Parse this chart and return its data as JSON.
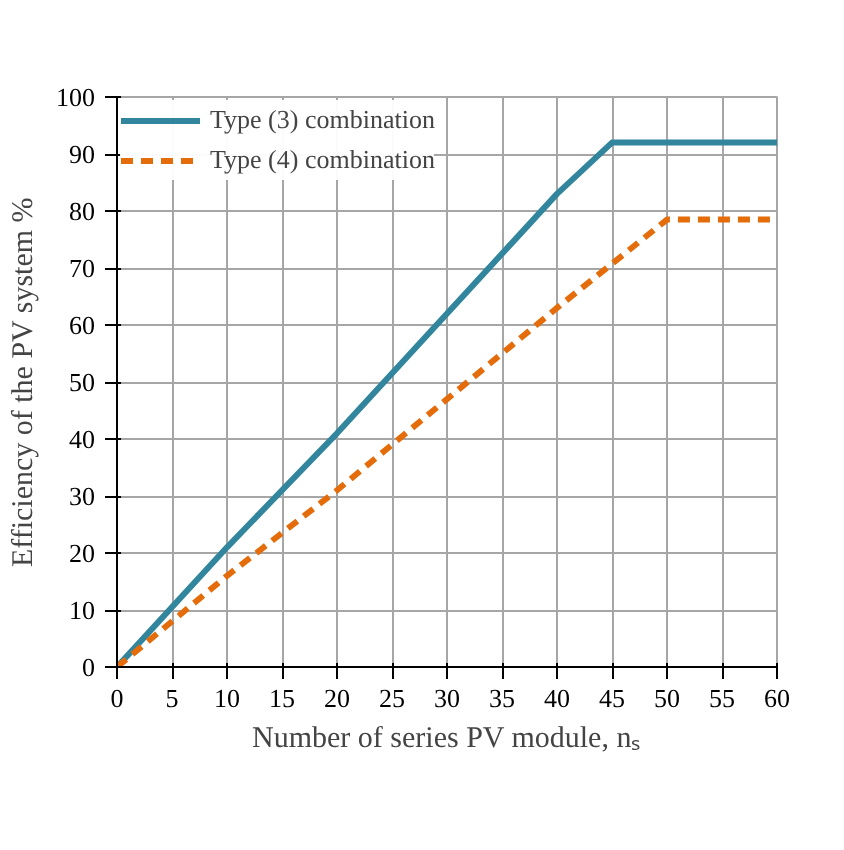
{
  "chart_data": {
    "type": "line",
    "xlabel": "Number of series PV module, nₛ",
    "ylabel": "Efficiency of the PV system %",
    "series": [
      {
        "name": "Type (3) combination",
        "color": "#31859c",
        "line_style": "solid",
        "x": [
          0,
          10,
          20,
          40,
          45,
          60
        ],
        "values": [
          0,
          21,
          41,
          83,
          92,
          92
        ]
      },
      {
        "name": "Type (4) combination",
        "color": "#e46c0a",
        "line_style": "dashed",
        "x": [
          0,
          10,
          20,
          40,
          50,
          60
        ],
        "values": [
          0,
          16,
          31,
          63,
          78.5,
          78.5
        ]
      }
    ],
    "xlim": [
      0,
      60
    ],
    "xticks": [
      0,
      5,
      10,
      15,
      20,
      25,
      30,
      35,
      40,
      45,
      50,
      55,
      60
    ],
    "ylim": [
      0,
      100
    ],
    "yticks": [
      0,
      10,
      20,
      30,
      40,
      50,
      60,
      70,
      80,
      90,
      100
    ],
    "grid": true,
    "legend": "top left"
  }
}
